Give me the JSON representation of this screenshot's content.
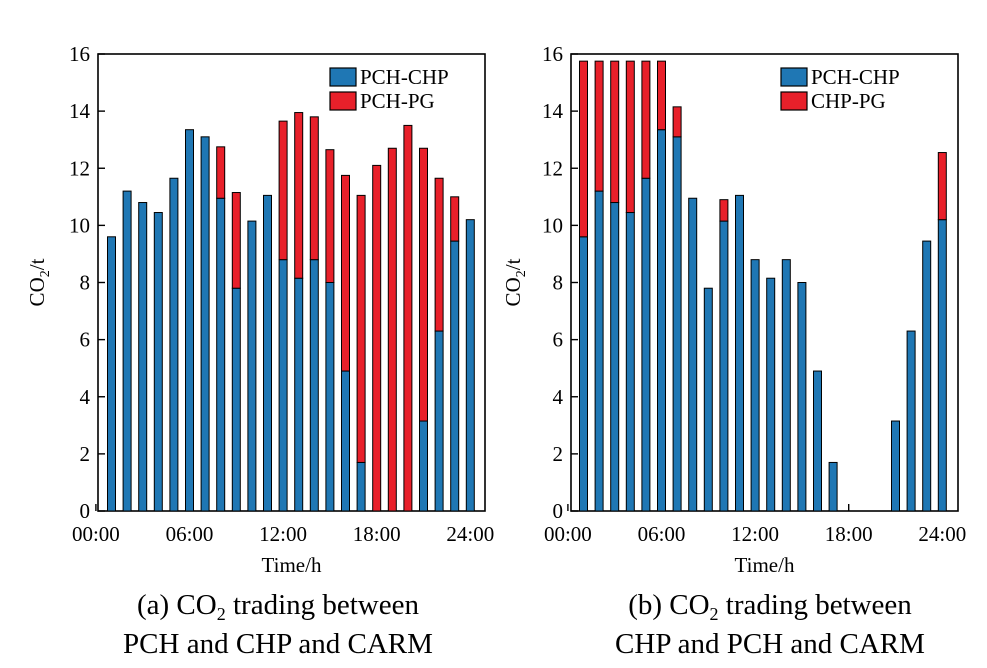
{
  "chart_data": [
    {
      "type": "bar",
      "stacked": true,
      "caption": {
        "line1_prefix": "(a) CO",
        "line1_sub": "2",
        "line1_suffix": " trading between",
        "line2": "PCH and CHP and CARM"
      },
      "xlabel": "Time/h",
      "ylabel_prefix": "CO",
      "ylabel_sub": "2",
      "ylabel_suffix": "/t",
      "ylim": [
        0,
        16
      ],
      "yticks": [
        "0",
        "2",
        "4",
        "6",
        "8",
        "10",
        "12",
        "14",
        "16"
      ],
      "xticks": [
        {
          "label": "00:00",
          "hour": 0
        },
        {
          "label": "06:00",
          "hour": 6
        },
        {
          "label": "12:00",
          "hour": 12
        },
        {
          "label": "18:00",
          "hour": 18
        },
        {
          "label": "24:00",
          "hour": 24
        }
      ],
      "categories": [
        1,
        2,
        3,
        4,
        5,
        6,
        7,
        8,
        9,
        10,
        11,
        12,
        13,
        14,
        15,
        16,
        17,
        18,
        19,
        20,
        21,
        22,
        23,
        24
      ],
      "legend_position": "top-right",
      "series": [
        {
          "name": "PCH-CHP",
          "color": "#1f77b4",
          "values": [
            9.6,
            11.2,
            10.8,
            10.45,
            11.65,
            13.35,
            13.1,
            10.95,
            7.8,
            10.15,
            11.05,
            8.8,
            8.15,
            8.8,
            8.0,
            4.9,
            1.7,
            0,
            0,
            0,
            3.15,
            6.3,
            9.45,
            10.2
          ]
        },
        {
          "name": "PCH-PG",
          "color": "#e8202a",
          "values": [
            0,
            0,
            0,
            0,
            0,
            0,
            0,
            1.8,
            3.35,
            0,
            0,
            4.85,
            5.8,
            5.0,
            4.65,
            6.85,
            9.35,
            12.1,
            12.7,
            13.5,
            9.55,
            5.35,
            1.55,
            0
          ]
        }
      ]
    },
    {
      "type": "bar",
      "stacked": true,
      "caption": {
        "line1_prefix": "(b) CO",
        "line1_sub": "2",
        "line1_suffix": " trading between",
        "line2": "CHP and PCH and CARM"
      },
      "xlabel": "Time/h",
      "ylabel_prefix": "CO",
      "ylabel_sub": "2",
      "ylabel_suffix": "/t",
      "ylim": [
        0,
        16
      ],
      "yticks": [
        "0",
        "2",
        "4",
        "6",
        "8",
        "10",
        "12",
        "14",
        "16"
      ],
      "xticks": [
        {
          "label": "00:00",
          "hour": 0
        },
        {
          "label": "06:00",
          "hour": 6
        },
        {
          "label": "12:00",
          "hour": 12
        },
        {
          "label": "18:00",
          "hour": 18
        },
        {
          "label": "24:00",
          "hour": 24
        }
      ],
      "categories": [
        1,
        2,
        3,
        4,
        5,
        6,
        7,
        8,
        9,
        10,
        11,
        12,
        13,
        14,
        15,
        16,
        17,
        18,
        19,
        20,
        21,
        22,
        23,
        24
      ],
      "legend_position": "top-right",
      "series": [
        {
          "name": "PCH-CHP",
          "color": "#1f77b4",
          "values": [
            9.6,
            11.2,
            10.8,
            10.45,
            11.65,
            13.35,
            13.1,
            10.95,
            7.8,
            10.15,
            11.05,
            8.8,
            8.15,
            8.8,
            8.0,
            4.9,
            1.7,
            0,
            0,
            0,
            3.15,
            6.3,
            9.45,
            10.2
          ]
        },
        {
          "name": "CHP-PG",
          "color": "#e8202a",
          "values": [
            6.15,
            4.55,
            4.95,
            5.3,
            4.1,
            2.4,
            1.05,
            0,
            0,
            0.75,
            0,
            0,
            0,
            0,
            0,
            0,
            0,
            0,
            0,
            0,
            0,
            0,
            0,
            2.35
          ]
        }
      ]
    }
  ]
}
